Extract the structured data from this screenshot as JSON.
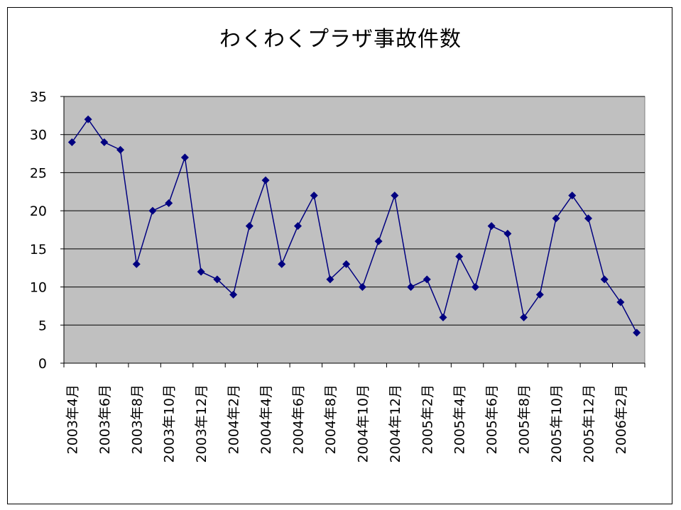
{
  "chart_data": {
    "type": "line",
    "title": "わくわくプラザ事故件数",
    "xlabel": "",
    "ylabel": "",
    "ylim": [
      0,
      35
    ],
    "yticks": [
      0,
      5,
      10,
      15,
      20,
      25,
      30,
      35
    ],
    "grid": true,
    "legend": "none",
    "plot_background": "#c0c0c0",
    "line_color": "#000080",
    "categories": [
      "2003年4月",
      "2003年5月",
      "2003年6月",
      "2003年7月",
      "2003年8月",
      "2003年9月",
      "2003年10月",
      "2003年11月",
      "2003年12月",
      "2004年1月",
      "2004年2月",
      "2004年3月",
      "2004年4月",
      "2004年5月",
      "2004年6月",
      "2004年7月",
      "2004年8月",
      "2004年9月",
      "2004年10月",
      "2004年11月",
      "2004年12月",
      "2005年1月",
      "2005年2月",
      "2005年3月",
      "2005年4月",
      "2005年5月",
      "2005年6月",
      "2005年7月",
      "2005年8月",
      "2005年9月",
      "2005年10月",
      "2005年11月",
      "2005年12月",
      "2006年1月",
      "2006年2月",
      "2006年3月"
    ],
    "tick_labels": [
      "2003年4月",
      "2003年6月",
      "2003年8月",
      "2003年10月",
      "2003年12月",
      "2004年2月",
      "2004年4月",
      "2004年6月",
      "2004年8月",
      "2004年10月",
      "2004年12月",
      "2005年2月",
      "2005年4月",
      "2005年6月",
      "2005年8月",
      "2005年10月",
      "2005年12月",
      "2006年2月"
    ],
    "series": [
      {
        "values": [
          29,
          32,
          29,
          28,
          13,
          20,
          21,
          27,
          12,
          11,
          9,
          18,
          24,
          13,
          18,
          22,
          11,
          13,
          10,
          16,
          22,
          10,
          11,
          6,
          14,
          10,
          18,
          17,
          6,
          9,
          19,
          22,
          19,
          11,
          8,
          4
        ]
      }
    ]
  }
}
